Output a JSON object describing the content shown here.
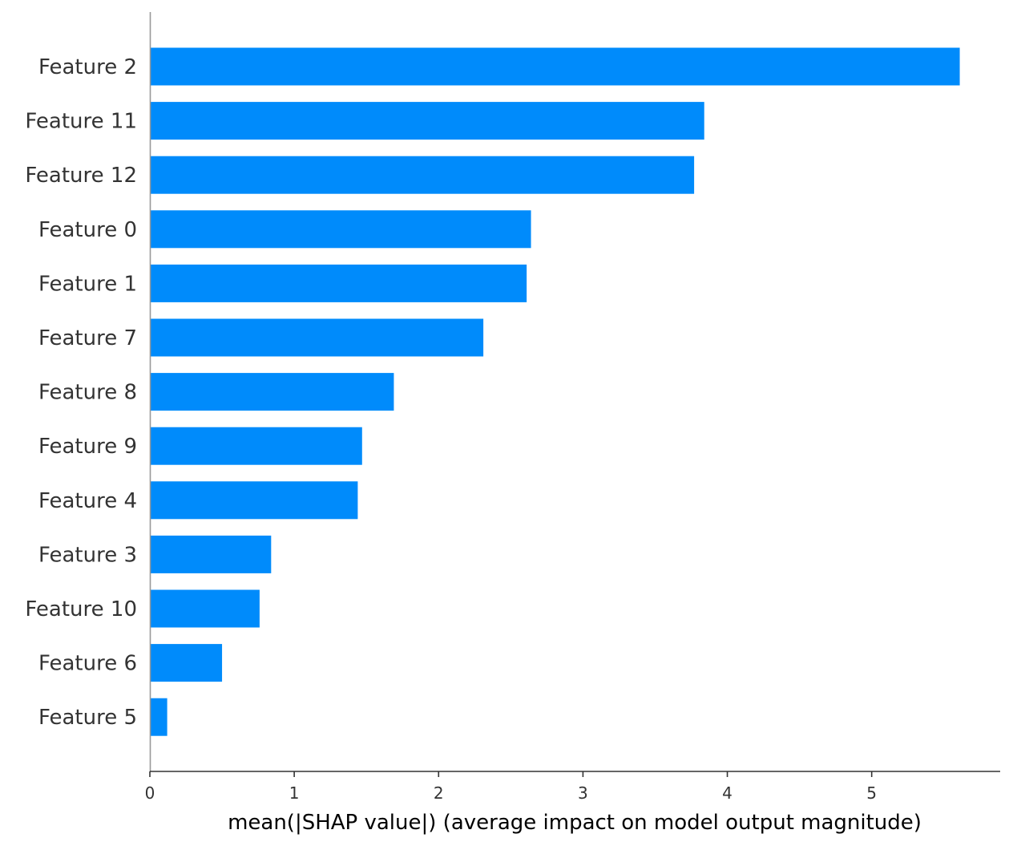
{
  "chart_data": {
    "type": "bar",
    "orientation": "horizontal",
    "title": "",
    "xlabel": "mean(|SHAP value|) (average impact on model output magnitude)",
    "ylabel": "",
    "xlim": [
      0,
      5.89
    ],
    "xticks": [
      0,
      1,
      2,
      3,
      4,
      5
    ],
    "xtick_labels": [
      "0",
      "1",
      "2",
      "3",
      "4",
      "5"
    ],
    "grid": false,
    "legend": "none",
    "bar_color": "#008bfb",
    "categories": [
      "Feature 2",
      "Feature 11",
      "Feature 12",
      "Feature 0",
      "Feature 1",
      "Feature 7",
      "Feature 8",
      "Feature 9",
      "Feature 4",
      "Feature 3",
      "Feature 10",
      "Feature 6",
      "Feature 5"
    ],
    "values": [
      5.61,
      3.84,
      3.77,
      2.64,
      2.61,
      2.31,
      1.69,
      1.47,
      1.44,
      0.84,
      0.76,
      0.5,
      0.12
    ]
  }
}
